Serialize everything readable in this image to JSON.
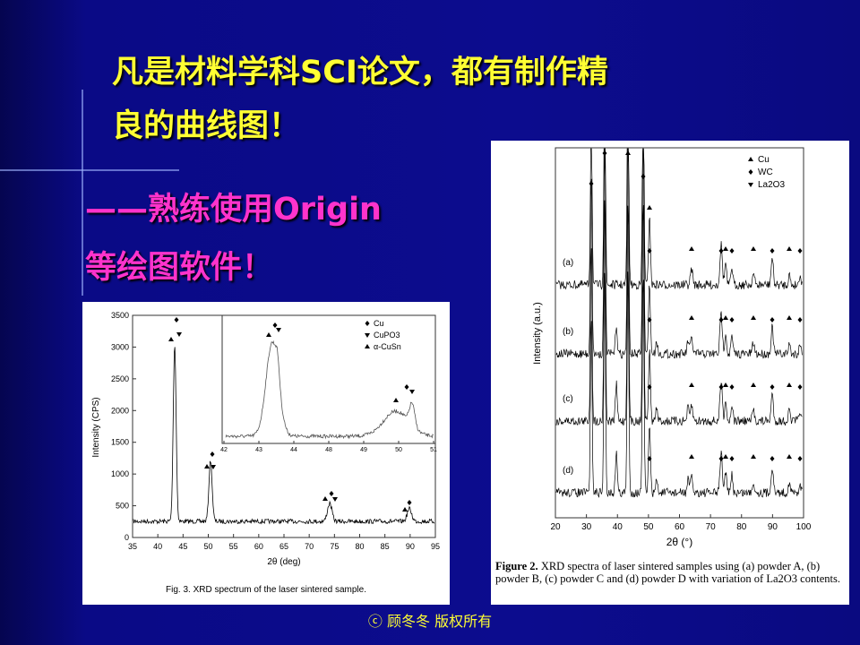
{
  "slide": {
    "title_line1": "凡是材料学科SCI论文，都有制作精",
    "title_line2": "良的曲线图！",
    "subtitle_line1": "——熟练使用Origin",
    "subtitle_line2": "等绘图软件！",
    "footer": "ⓒ 顾冬冬 版权所有"
  },
  "figure_left": {
    "x_label": "2θ (deg)",
    "y_label": "Intensity (CPS)",
    "x_ticks": [
      "35",
      "40",
      "45",
      "50",
      "55",
      "60",
      "65",
      "70",
      "75",
      "80",
      "85",
      "90",
      "95"
    ],
    "y_ticks": [
      "0",
      "500",
      "1000",
      "1500",
      "2000",
      "2500",
      "3000",
      "3500"
    ],
    "legend": [
      "Cu",
      "CuPO3",
      "α-CuSn"
    ],
    "inset_x_ticks": [
      "42",
      "43",
      "44",
      "48",
      "49",
      "50",
      "51"
    ],
    "caption": "Fig. 3.  XRD spectrum of the laser sintered sample."
  },
  "figure_right": {
    "x_label": "2θ (°)",
    "y_label": "Intensity (a.u.)",
    "x_ticks": [
      "20",
      "30",
      "40",
      "50",
      "60",
      "70",
      "80",
      "90",
      "100"
    ],
    "legend": [
      "Cu",
      "WC",
      "La2O3"
    ],
    "traces": [
      "(a)",
      "(b)",
      "(c)",
      "(d)"
    ],
    "caption_bold": "Figure 2.",
    "caption": "XRD spectra of laser sintered samples using (a) powder A, (b) powder B, (c) powder C and (d) powder D with variation of La2O3 contents."
  }
}
